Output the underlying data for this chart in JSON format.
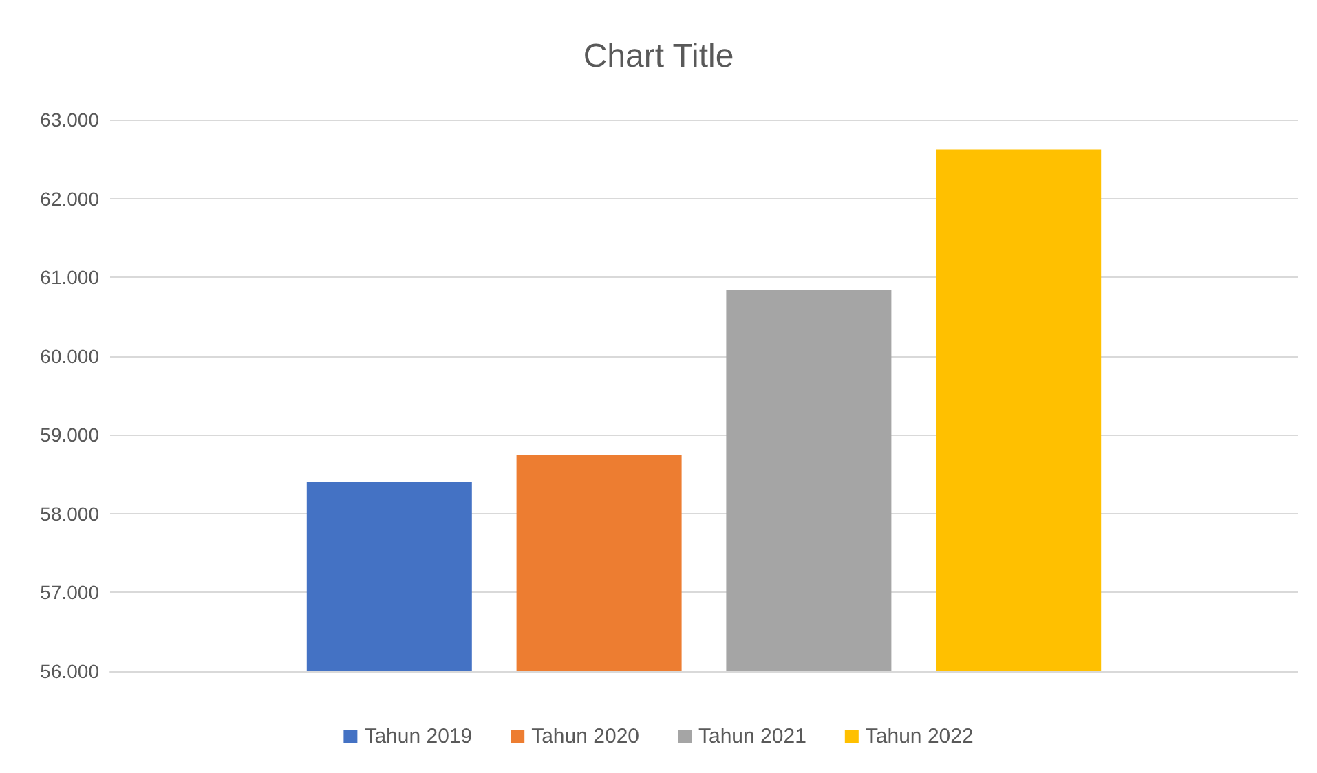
{
  "chart_data": {
    "type": "bar",
    "title": "Chart Title",
    "categories": [
      null
    ],
    "series": [
      {
        "name": "Tahun 2019",
        "color": "#4472c4",
        "values": [
          58400
        ]
      },
      {
        "name": "Tahun 2020",
        "color": "#ed7d31",
        "values": [
          58740
        ]
      },
      {
        "name": "Tahun 2021",
        "color": "#a5a5a5",
        "values": [
          60840
        ]
      },
      {
        "name": "Tahun 2022",
        "color": "#ffc000",
        "values": [
          62620
        ]
      }
    ],
    "ylim": [
      56000,
      63000
    ],
    "yticks": [
      {
        "value": 56000,
        "label": "56.000"
      },
      {
        "value": 57000,
        "label": "57.000"
      },
      {
        "value": 58000,
        "label": "58.000"
      },
      {
        "value": 59000,
        "label": "59.000"
      },
      {
        "value": 60000,
        "label": "60.000"
      },
      {
        "value": 61000,
        "label": "61.000"
      },
      {
        "value": 62000,
        "label": "62.000"
      },
      {
        "value": 63000,
        "label": "63.000"
      }
    ],
    "grid": "y",
    "legend": "bottom"
  }
}
